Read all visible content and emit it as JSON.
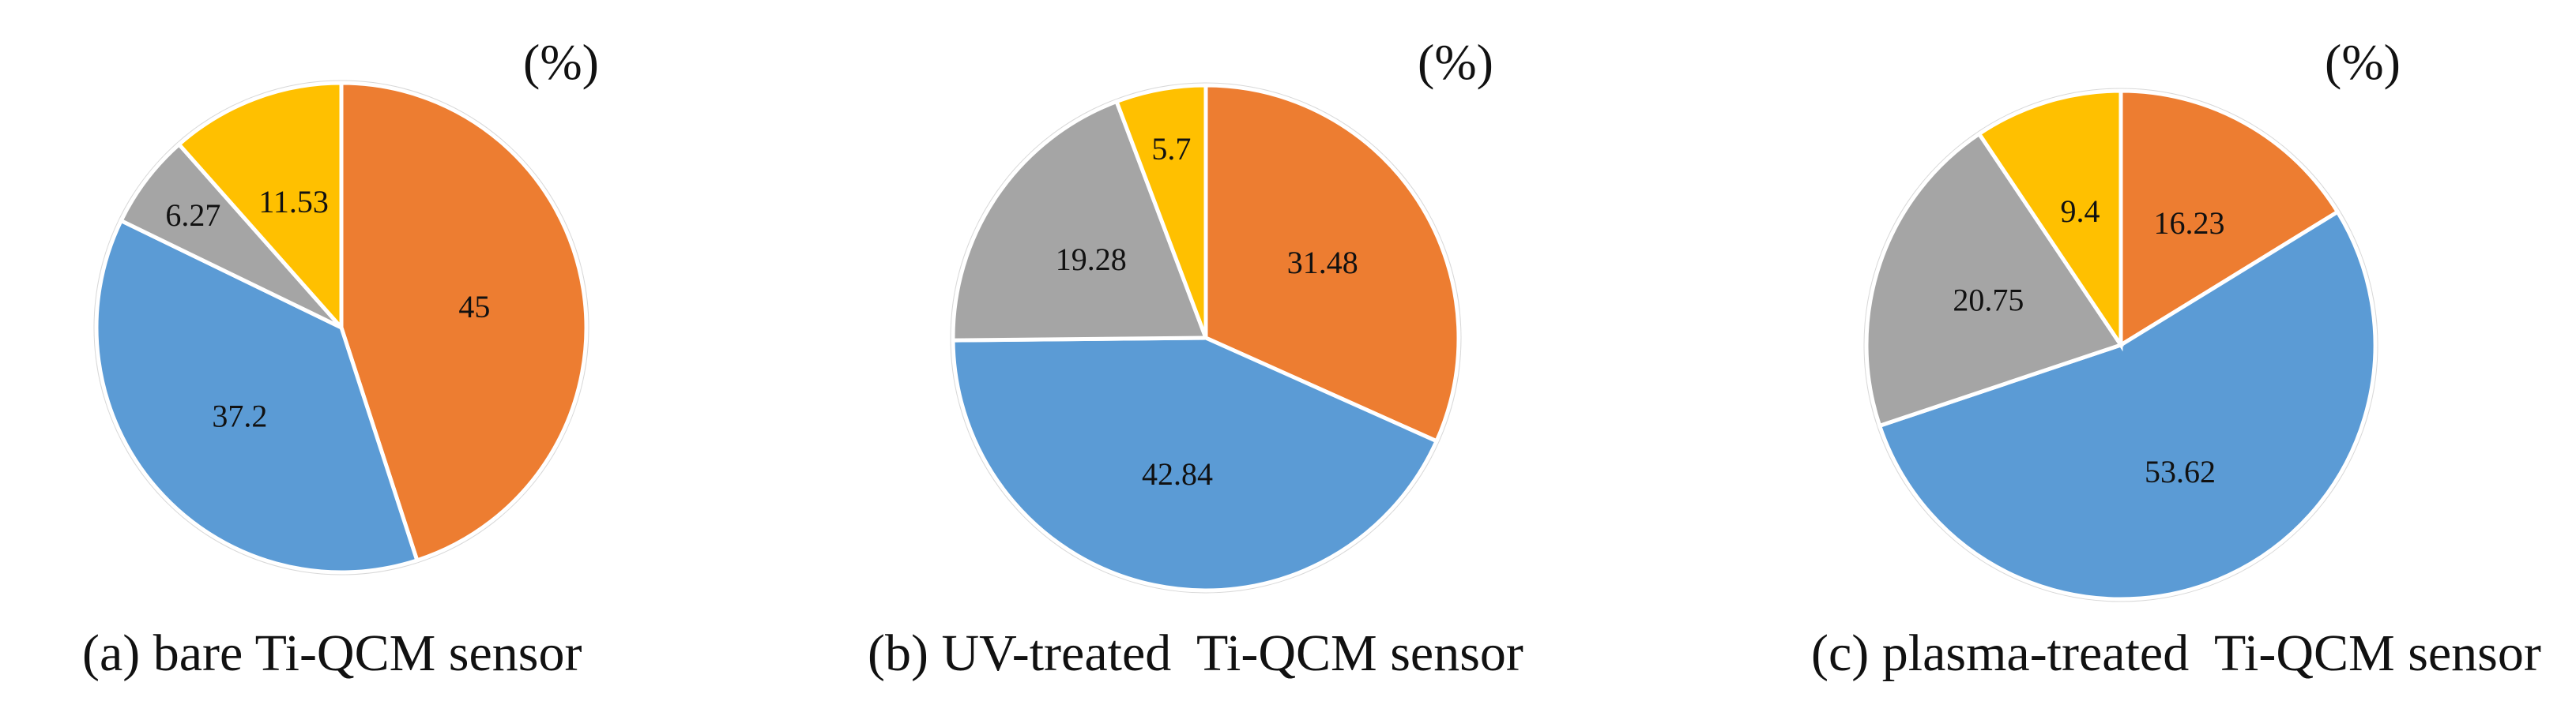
{
  "chart_data": [
    {
      "type": "pie",
      "unit_label": "(%)",
      "caption": "(a) bare Ti-QCM sensor",
      "slices": [
        {
          "value": 45,
          "label": "45",
          "color": "#ED7D31"
        },
        {
          "value": 37.2,
          "label": "37.2",
          "color": "#5B9BD5"
        },
        {
          "value": 6.27,
          "label": "6.27",
          "color": "#A5A5A5"
        },
        {
          "value": 11.53,
          "label": "11.53",
          "color": "#FFC000"
        }
      ]
    },
    {
      "type": "pie",
      "unit_label": "(%)",
      "caption": "(b) UV-treated  Ti-QCM sensor",
      "slices": [
        {
          "value": 31.48,
          "label": "31.48",
          "color": "#ED7D31"
        },
        {
          "value": 42.84,
          "label": "42.84",
          "color": "#5B9BD5"
        },
        {
          "value": 19.28,
          "label": "19.28",
          "color": "#A5A5A5"
        },
        {
          "value": 5.7,
          "label": "5.7",
          "color": "#FFC000"
        }
      ]
    },
    {
      "type": "pie",
      "unit_label": "(%)",
      "caption": "(c) plasma-treated  Ti-QCM sensor",
      "slices": [
        {
          "value": 16.23,
          "label": "16.23",
          "color": "#ED7D31"
        },
        {
          "value": 53.62,
          "label": "53.62",
          "color": "#5B9BD5"
        },
        {
          "value": 20.75,
          "label": "20.75",
          "color": "#A5A5A5"
        },
        {
          "value": 9.4,
          "label": "9.4",
          "color": "#FFC000"
        }
      ]
    }
  ]
}
